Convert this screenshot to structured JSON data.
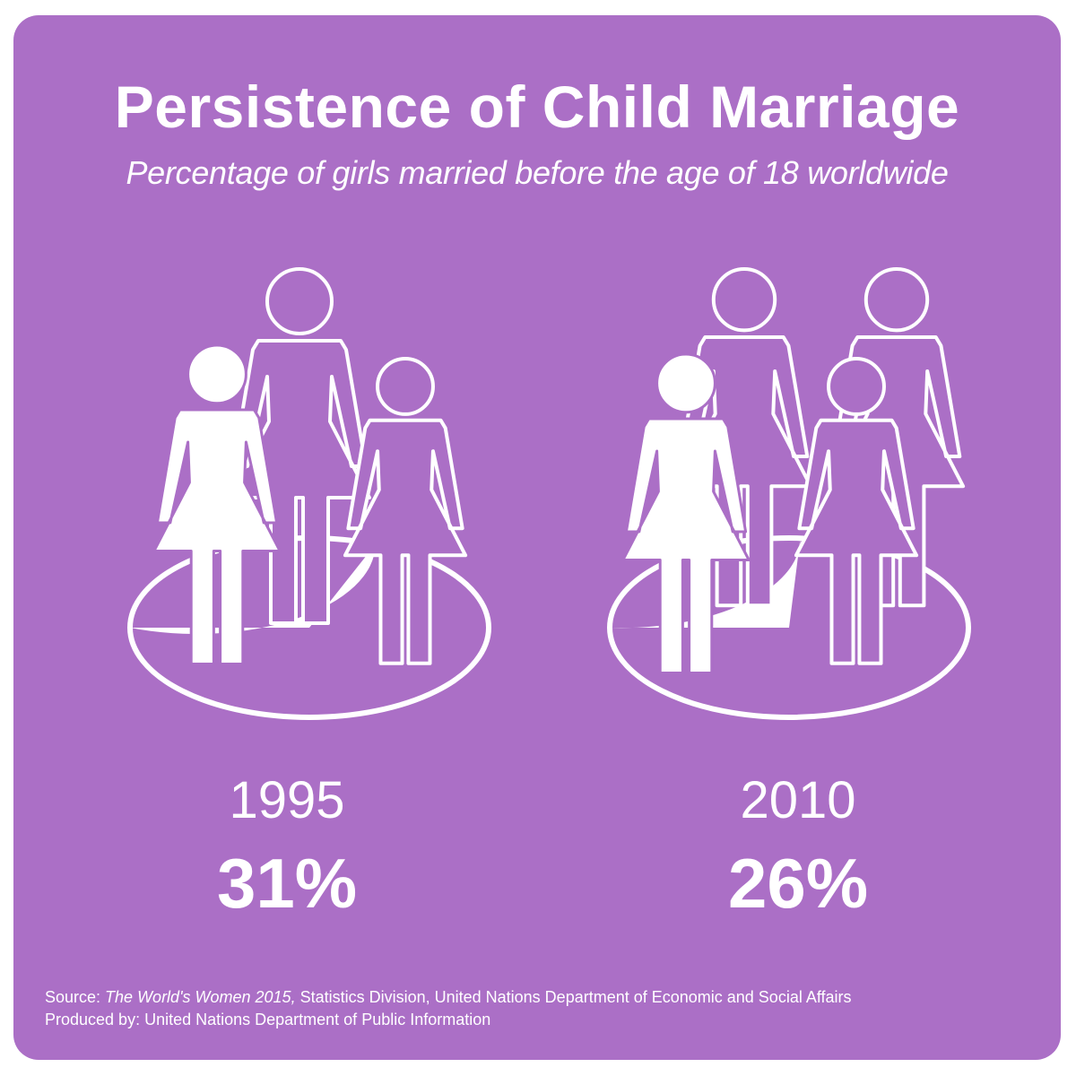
{
  "header": {
    "title": "Persistence of Child Marriage",
    "subtitle": "Percentage of girls married before the age of 18 worldwide"
  },
  "chart_data": {
    "type": "pie",
    "title": "Persistence of Child Marriage",
    "subtitle": "Percentage of girls married before the age of 18 worldwide",
    "categories": [
      "1995",
      "2010"
    ],
    "values": [
      31,
      26
    ],
    "value_labels": [
      "31%",
      "26%"
    ],
    "unit": "%"
  },
  "panels": [
    {
      "year": "1995",
      "value_label": "31%",
      "value": 31
    },
    {
      "year": "2010",
      "value_label": "26%",
      "value": 26
    }
  ],
  "footer": {
    "source_prefix": "Source: ",
    "source_title": "The World's Women 2015,",
    "source_rest": " Statistics Division, United Nations Department of Economic and Social Affairs",
    "produced_by": "Produced by: United Nations Department of Public Information"
  },
  "colors": {
    "background": "#ab6fc6",
    "foreground": "#ffffff"
  },
  "icons": [
    "girl-icon"
  ]
}
